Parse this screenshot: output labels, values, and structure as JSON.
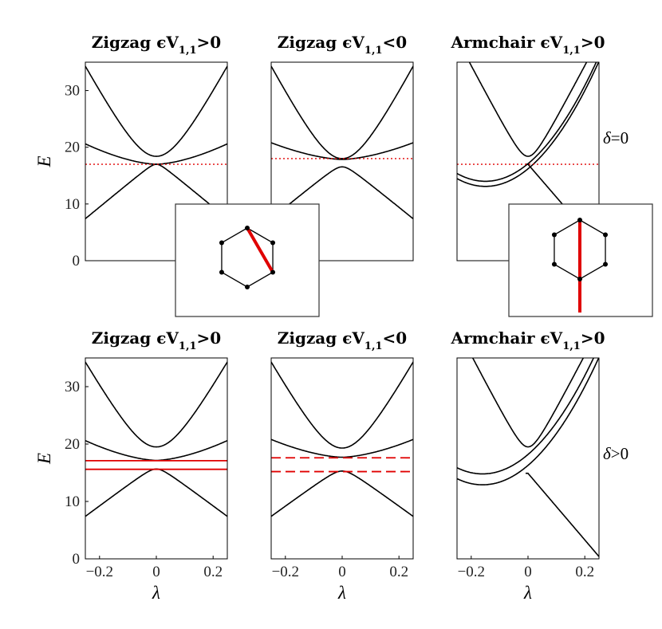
{
  "row_labels": [
    {
      "lhs": "δ",
      "rhs": "=0"
    },
    {
      "lhs": "δ",
      "rhs": ">0"
    }
  ],
  "x_label": "λ",
  "y_label": "E",
  "colors": {
    "curve": "#000000",
    "marker": "#e00000",
    "box": "#333333"
  },
  "chart_data": [
    {
      "type": "line",
      "title": {
        "main": "Zigzag ϵV",
        "sub": "1,1",
        "rel": ">0"
      },
      "xlim": [
        -0.25,
        0.25
      ],
      "ylim": [
        0,
        35
      ],
      "xticks": [],
      "yticks": [
        "0",
        "10",
        "20",
        "30"
      ],
      "model": {
        "kind": "zigzag",
        "E0": 17.0,
        "g": 0.0,
        "up": 18.4,
        "ug": 20.6,
        "lg": 7.4
      },
      "markers": [
        {
          "y": 17.0,
          "style": "dotted"
        }
      ]
    },
    {
      "type": "line",
      "title": {
        "main": "Zigzag ϵV",
        "sub": "1,1",
        "rel": "<0"
      },
      "xlim": [
        -0.25,
        0.25
      ],
      "ylim": [
        0,
        35
      ],
      "xticks": [],
      "yticks": [],
      "model": {
        "kind": "zigzag",
        "E0": 17.2,
        "g": 1.3,
        "up": 18.0,
        "ug": 20.8,
        "lg": 7.4
      },
      "markers": [
        {
          "y": 18.0,
          "style": "dotted"
        }
      ]
    },
    {
      "type": "line",
      "title": {
        "main": "Armchair ϵV",
        "sub": "1,1",
        "rel": ">0"
      },
      "xlim": [
        -0.25,
        0.25
      ],
      "ylim": [
        0,
        35
      ],
      "xticks": [],
      "yticks": [],
      "model": {
        "kind": "armchair",
        "cross": 17.0,
        "g": 0.0,
        "up": 18.4,
        "minx": -0.15,
        "miny": 13.1,
        "sep": 0.9
      },
      "markers": [
        {
          "y": 17.0,
          "style": "dotted"
        }
      ]
    },
    {
      "type": "line",
      "title": {
        "main": "Zigzag ϵV",
        "sub": "1,1",
        "rel": ">0"
      },
      "xlim": [
        -0.25,
        0.25
      ],
      "ylim": [
        0,
        35
      ],
      "xticks": [
        "-0.2",
        "0",
        "0.2"
      ],
      "yticks": [
        "0",
        "10",
        "20",
        "30"
      ],
      "model": {
        "kind": "zigzag",
        "E0": 16.4,
        "g": 1.5,
        "up": 19.5,
        "ug": 20.6,
        "lg": 7.4
      },
      "markers": [
        {
          "y": 17.1,
          "style": "solid"
        },
        {
          "y": 15.6,
          "style": "solid"
        }
      ]
    },
    {
      "type": "line",
      "title": {
        "main": "Zigzag ϵV",
        "sub": "1,1",
        "rel": "<0"
      },
      "xlim": [
        -0.25,
        0.25
      ],
      "ylim": [
        0,
        35
      ],
      "xticks": [
        "-0.2",
        "0",
        "0.2"
      ],
      "yticks": [],
      "model": {
        "kind": "zigzag",
        "E0": 16.5,
        "g": 2.4,
        "up": 19.3,
        "ug": 20.8,
        "lg": 7.4
      },
      "markers": [
        {
          "y": 17.6,
          "style": "dashed"
        },
        {
          "y": 15.2,
          "style": "dashed"
        }
      ]
    },
    {
      "type": "line",
      "title": {
        "main": "Armchair ϵV",
        "sub": "1,1",
        "rel": ">0"
      },
      "xlim": [
        -0.25,
        0.25
      ],
      "ylim": [
        0,
        35
      ],
      "xticks": [
        "-0.2",
        "0",
        "0.2"
      ],
      "yticks": [],
      "model": {
        "kind": "armchair",
        "cross": 16.2,
        "g": 1.3,
        "up": 19.5,
        "minx": -0.16,
        "miny": 12.9,
        "sep": 1.9
      },
      "markers": []
    }
  ]
}
